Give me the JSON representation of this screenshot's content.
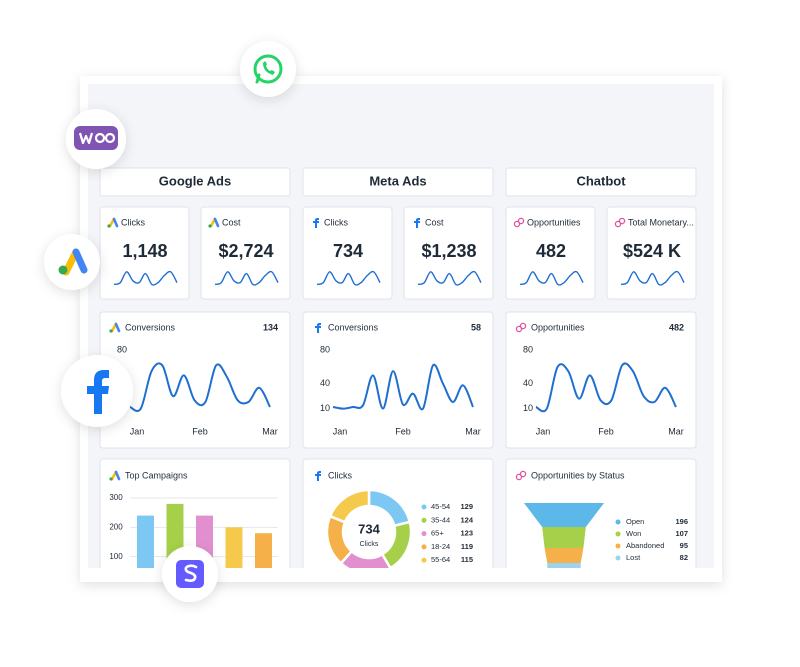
{
  "columns": [
    {
      "title": "Google Ads",
      "kpis": [
        {
          "label": "Clicks",
          "value": "1,148"
        },
        {
          "label": "Cost",
          "value": "$2,724"
        }
      ],
      "trend": {
        "label": "Conversions",
        "total": 134,
        "ylim": [
          0,
          90
        ],
        "yticks": [
          10,
          40,
          80
        ],
        "xlabels": [
          "Jan",
          "Feb",
          "Mar"
        ],
        "color": "#1f6fd1",
        "values": [
          12,
          10,
          55,
          62,
          25,
          50,
          20,
          18,
          62,
          48,
          20,
          18,
          35,
          12
        ]
      },
      "panel": {
        "type": "bar",
        "title": "Top Campaigns",
        "ylim": [
          0,
          300
        ],
        "yticks": [
          100,
          200,
          300
        ],
        "values": [
          240,
          280,
          240,
          200,
          180
        ],
        "colors": [
          "#7cc8f2",
          "#a6d04a",
          "#e28fd0",
          "#f4c94c",
          "#f5b04a"
        ]
      }
    },
    {
      "title": "Meta Ads",
      "kpis": [
        {
          "label": "Clicks",
          "value": "734"
        },
        {
          "label": "Cost",
          "value": "$1,238"
        }
      ],
      "trend": {
        "label": "Conversions",
        "total": 58,
        "ylim": [
          0,
          90
        ],
        "yticks": [
          10,
          40,
          80
        ],
        "xlabels": [
          "Jan",
          "Feb",
          "Mar"
        ],
        "color": "#1f6fd1",
        "values": [
          12,
          10,
          12,
          14,
          50,
          10,
          55,
          15,
          28,
          10,
          62,
          40,
          18,
          38,
          12
        ]
      },
      "panel": {
        "type": "donut",
        "title": "Clicks",
        "total": 734,
        "total_label": "Clicks",
        "categories": [
          "45-54",
          "35-44",
          "65+",
          "18-24",
          "55-64"
        ],
        "values": [
          129,
          124,
          123,
          119,
          115
        ],
        "colors": [
          "#7cc8f2",
          "#a6d04a",
          "#e28fd0",
          "#f5b04a",
          "#f4c94c"
        ]
      }
    },
    {
      "title": "Chatbot",
      "kpis": [
        {
          "label": "Opportunities",
          "value": "482"
        },
        {
          "label": "Total Monetary...",
          "value": "$524 K"
        }
      ],
      "trend": {
        "label": "Opportunities",
        "total": 482,
        "ylim": [
          0,
          90
        ],
        "yticks": [
          10,
          40,
          80
        ],
        "xlabels": [
          "Jan",
          "Feb",
          "Mar"
        ],
        "color": "#1f6fd1",
        "values": [
          12,
          10,
          60,
          55,
          22,
          50,
          20,
          20,
          62,
          55,
          25,
          18,
          35,
          12
        ]
      },
      "panel": {
        "type": "funnel",
        "title": "Opportunities by Status",
        "categories": [
          "Open",
          "Won",
          "Abandoned",
          "Lost"
        ],
        "values": [
          196,
          107,
          95,
          82
        ],
        "colors": [
          "#5bb8e8",
          "#a6d04a",
          "#f5b04a",
          "#9dd3f0"
        ]
      }
    }
  ]
}
